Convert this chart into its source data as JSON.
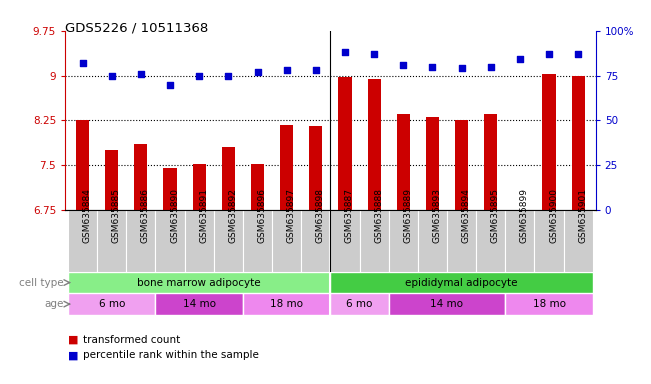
{
  "title": "GDS5226 / 10511368",
  "samples": [
    "GSM635884",
    "GSM635885",
    "GSM635886",
    "GSM635890",
    "GSM635891",
    "GSM635892",
    "GSM635896",
    "GSM635897",
    "GSM635898",
    "GSM635887",
    "GSM635888",
    "GSM635889",
    "GSM635893",
    "GSM635894",
    "GSM635895",
    "GSM635899",
    "GSM635900",
    "GSM635901"
  ],
  "transformed_count": [
    8.25,
    7.75,
    7.85,
    7.45,
    7.52,
    7.8,
    7.53,
    8.17,
    8.15,
    8.97,
    8.94,
    8.35,
    8.31,
    8.26,
    8.35,
    6.75,
    9.03,
    9.0
  ],
  "percentile_rank": [
    82,
    75,
    76,
    70,
    75,
    75,
    77,
    78,
    78,
    88,
    87,
    81,
    80,
    79,
    80,
    84,
    87,
    87
  ],
  "ylim_left": [
    6.75,
    9.75
  ],
  "ylim_right": [
    0,
    100
  ],
  "yticks_left": [
    6.75,
    7.5,
    8.25,
    9.0,
    9.75
  ],
  "yticks_left_labels": [
    "6.75",
    "7.5",
    "8.25",
    "9",
    "9.75"
  ],
  "yticks_right": [
    0,
    25,
    50,
    75,
    100
  ],
  "yticks_right_labels": [
    "0",
    "25",
    "50",
    "75",
    "100%"
  ],
  "hlines": [
    7.5,
    8.25,
    9.0
  ],
  "bar_color": "#cc0000",
  "dot_color": "#0000cc",
  "bar_baseline": 6.75,
  "cell_type_groups": [
    {
      "label": "bone marrow adipocyte",
      "start": 0,
      "end": 9,
      "color": "#88ee88"
    },
    {
      "label": "epididymal adipocyte",
      "start": 9,
      "end": 18,
      "color": "#44cc44"
    }
  ],
  "age_groups": [
    {
      "label": "6 mo",
      "start": 0,
      "end": 3,
      "color": "#f0a0f0"
    },
    {
      "label": "14 mo",
      "start": 3,
      "end": 6,
      "color": "#cc44cc"
    },
    {
      "label": "18 mo",
      "start": 6,
      "end": 9,
      "color": "#ee88ee"
    },
    {
      "label": "6 mo",
      "start": 9,
      "end": 11,
      "color": "#f0a0f0"
    },
    {
      "label": "14 mo",
      "start": 11,
      "end": 15,
      "color": "#cc44cc"
    },
    {
      "label": "18 mo",
      "start": 15,
      "end": 18,
      "color": "#ee88ee"
    }
  ],
  "cell_type_label": "cell type",
  "age_label": "age",
  "legend_bar_label": "transformed count",
  "legend_dot_label": "percentile rank within the sample",
  "bar_width": 0.45,
  "xlabel_fontsize": 6.5,
  "tick_fontsize": 7.5,
  "title_fontsize": 9.5,
  "grid_color": "#000000",
  "bg_color": "#ffffff",
  "plot_bg_color": "#ffffff",
  "xtick_bg_color": "#cccccc",
  "sep_x": 8.5,
  "xlim": [
    -0.6,
    17.6
  ]
}
